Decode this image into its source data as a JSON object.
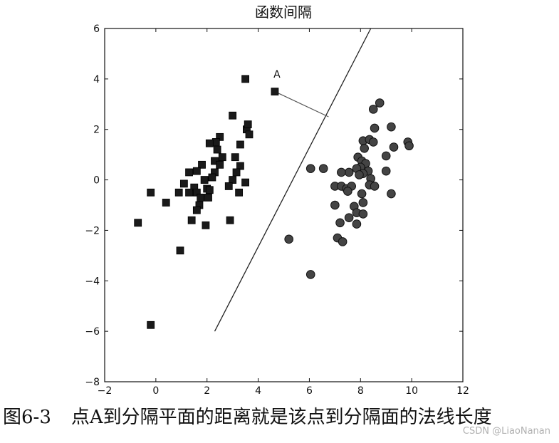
{
  "chart_data": {
    "type": "scatter",
    "title": "函数间隔",
    "xlabel": "",
    "ylabel": "",
    "xlim": [
      -2,
      12
    ],
    "ylim": [
      -8,
      6
    ],
    "x_ticks": [
      -2,
      0,
      2,
      4,
      6,
      8,
      10,
      12
    ],
    "y_ticks": [
      -8,
      -6,
      -4,
      -2,
      0,
      2,
      4,
      6
    ],
    "x_tick_labels": [
      "−2",
      "0",
      "2",
      "4",
      "6",
      "8",
      "10",
      "12"
    ],
    "y_tick_labels": [
      "−8",
      "−6",
      "−4",
      "−2",
      "0",
      "2",
      "4",
      "6"
    ],
    "grid": false,
    "colors": {
      "squares": "#1a1a1a",
      "circles": "#444444",
      "line": "#222222"
    },
    "series": [
      {
        "marker": "square",
        "points": [
          [
            3.5,
            4.0
          ],
          [
            4.65,
            3.5
          ],
          [
            3.0,
            2.55
          ],
          [
            3.55,
            2.0
          ],
          [
            3.6,
            2.2
          ],
          [
            3.65,
            1.8
          ],
          [
            2.5,
            1.7
          ],
          [
            2.35,
            1.5
          ],
          [
            2.1,
            1.45
          ],
          [
            2.4,
            1.2
          ],
          [
            3.3,
            1.4
          ],
          [
            3.1,
            0.9
          ],
          [
            2.6,
            0.9
          ],
          [
            2.3,
            0.75
          ],
          [
            2.5,
            0.6
          ],
          [
            1.8,
            0.6
          ],
          [
            3.3,
            0.55
          ],
          [
            1.6,
            0.35
          ],
          [
            2.3,
            0.3
          ],
          [
            2.2,
            0.1
          ],
          [
            3.0,
            0.0
          ],
          [
            1.3,
            0.3
          ],
          [
            1.9,
            0.0
          ],
          [
            3.5,
            -0.1
          ],
          [
            1.1,
            -0.15
          ],
          [
            1.5,
            -0.3
          ],
          [
            2.0,
            -0.35
          ],
          [
            0.9,
            -0.5
          ],
          [
            1.3,
            -0.5
          ],
          [
            1.6,
            -0.5
          ],
          [
            2.1,
            -0.4
          ],
          [
            2.85,
            -0.25
          ],
          [
            3.15,
            0.3
          ],
          [
            3.25,
            -0.5
          ],
          [
            1.75,
            -0.7
          ],
          [
            2.05,
            -0.7
          ],
          [
            -0.2,
            -0.5
          ],
          [
            0.4,
            -0.9
          ],
          [
            1.7,
            -1.0
          ],
          [
            1.6,
            -1.2
          ],
          [
            1.4,
            -1.6
          ],
          [
            1.95,
            -1.8
          ],
          [
            2.9,
            -1.6
          ],
          [
            -0.7,
            -1.7
          ],
          [
            0.95,
            -2.8
          ],
          [
            -0.2,
            -5.75
          ]
        ]
      },
      {
        "marker": "circle",
        "points": [
          [
            8.75,
            3.05
          ],
          [
            8.5,
            2.8
          ],
          [
            8.55,
            2.05
          ],
          [
            9.2,
            2.1
          ],
          [
            8.1,
            1.55
          ],
          [
            8.35,
            1.6
          ],
          [
            8.5,
            1.5
          ],
          [
            9.85,
            1.5
          ],
          [
            9.9,
            1.35
          ],
          [
            9.3,
            1.3
          ],
          [
            8.15,
            1.25
          ],
          [
            9.0,
            0.95
          ],
          [
            7.9,
            0.9
          ],
          [
            8.05,
            0.75
          ],
          [
            8.2,
            0.65
          ],
          [
            8.0,
            0.5
          ],
          [
            7.85,
            0.45
          ],
          [
            8.3,
            0.35
          ],
          [
            8.1,
            0.25
          ],
          [
            7.55,
            0.3
          ],
          [
            7.25,
            0.3
          ],
          [
            7.95,
            0.2
          ],
          [
            9.0,
            0.35
          ],
          [
            6.05,
            0.45
          ],
          [
            6.55,
            0.45
          ],
          [
            8.4,
            0.05
          ],
          [
            8.35,
            -0.2
          ],
          [
            8.55,
            -0.25
          ],
          [
            7.0,
            -0.25
          ],
          [
            7.25,
            -0.25
          ],
          [
            7.45,
            -0.35
          ],
          [
            7.65,
            -0.25
          ],
          [
            7.5,
            -0.45
          ],
          [
            7.0,
            -1.0
          ],
          [
            8.05,
            -0.55
          ],
          [
            9.2,
            -0.55
          ],
          [
            8.1,
            -0.9
          ],
          [
            7.75,
            -1.05
          ],
          [
            7.85,
            -1.3
          ],
          [
            8.1,
            -1.35
          ],
          [
            7.55,
            -1.5
          ],
          [
            7.2,
            -1.7
          ],
          [
            7.85,
            -1.75
          ],
          [
            7.1,
            -2.3
          ],
          [
            5.2,
            -2.35
          ],
          [
            7.3,
            -2.45
          ],
          [
            6.05,
            -3.75
          ]
        ]
      }
    ],
    "separating_line": {
      "x": [
        2.3,
        8.4
      ],
      "y": [
        -6.0,
        6.0
      ]
    },
    "normal_segment": {
      "from": [
        4.65,
        3.5
      ],
      "to": [
        6.75,
        2.5
      ]
    },
    "annotation": {
      "text": "A",
      "x": 4.6,
      "y": 4.05
    }
  },
  "caption": {
    "label": "图6-3",
    "text": "点A到分隔平面的距离就是该点到分隔面的法线长度"
  },
  "watermark": "CSDN @LiaoNanan"
}
